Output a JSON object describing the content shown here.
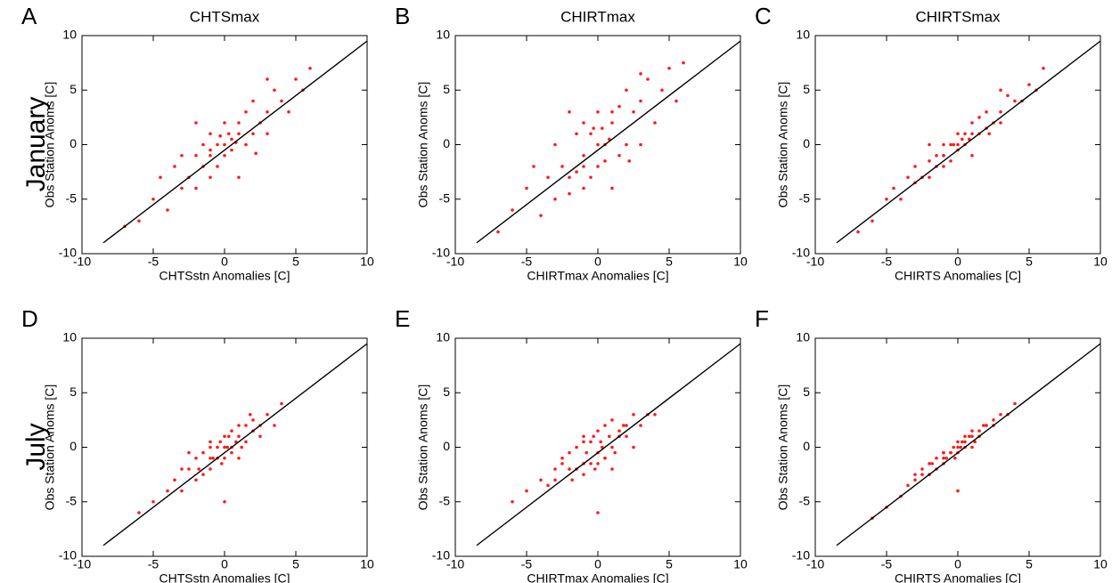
{
  "row_labels": [
    "January",
    "July"
  ],
  "chart_data": [
    {
      "type": "scatter",
      "panel": "A",
      "title": "CHTSmax",
      "xlabel": "CHTSstn Anomalies [C]",
      "ylabel": "Obs Station Anoms [C]",
      "xlim": [
        -10,
        10
      ],
      "ylim": [
        -10,
        10
      ],
      "xticks": [
        -10,
        -5,
        0,
        5,
        10
      ],
      "yticks": [
        -10,
        -5,
        0,
        5,
        10
      ],
      "color": "#ff1a1a",
      "x": [
        -6,
        -5,
        -4.5,
        -4,
        -3.5,
        -3,
        -3,
        -2.5,
        -2,
        -2,
        -1.5,
        -1.5,
        -1,
        -1,
        -1,
        -0.5,
        -0.5,
        0,
        0,
        0,
        0.3,
        0.5,
        0.5,
        1,
        1,
        1.5,
        1.5,
        2,
        2,
        2.5,
        3,
        3,
        3.5,
        4,
        4.5,
        5,
        5.5,
        6,
        -7,
        -2,
        1,
        3,
        -1,
        0.8,
        -0.3,
        2.2
      ],
      "y": [
        -7,
        -5,
        -3,
        -6,
        -2,
        -4,
        -1,
        -3,
        -1,
        -4,
        0,
        -2,
        -1,
        1,
        -3,
        0,
        -2,
        0,
        2,
        -1,
        1,
        0.5,
        -0.5,
        1,
        2,
        0,
        3,
        1,
        4,
        2,
        3,
        1,
        5,
        4,
        3,
        6,
        5,
        7,
        -7.5,
        2,
        -3,
        6,
        -0.5,
        0.2,
        0.8,
        -0.8
      ],
      "fit": {
        "x": [
          -8.5,
          10
        ],
        "y": [
          -9,
          9.5
        ],
        "color": "#000000"
      }
    },
    {
      "type": "scatter",
      "panel": "B",
      "title": "CHIRTmax",
      "xlabel": "CHIRTmax Anomalies [C]",
      "ylabel": "Obs Station Anoms [C]",
      "xlim": [
        -10,
        10
      ],
      "ylim": [
        -10,
        10
      ],
      "xticks": [
        -10,
        -5,
        0,
        5,
        10
      ],
      "yticks": [
        -10,
        -5,
        0,
        5,
        10
      ],
      "color": "#ff1a1a",
      "x": [
        -6,
        -5,
        -4.5,
        -4,
        -3.5,
        -3,
        -3,
        -2.5,
        -2,
        -2,
        -1.5,
        -1.5,
        -1,
        -1,
        -1,
        -0.5,
        -0.5,
        0,
        0,
        0,
        0.3,
        0.5,
        0.5,
        1,
        1,
        1.5,
        1.5,
        2,
        2,
        2.5,
        3,
        3,
        3.5,
        4,
        4.5,
        5,
        5.5,
        6,
        -7,
        -2,
        1,
        3,
        -1,
        0.8,
        -0.3,
        2.2
      ],
      "y": [
        -6,
        -4,
        -2,
        -6.5,
        -3,
        -5,
        0,
        -2,
        -3,
        -4.5,
        1,
        -2.5,
        -2,
        2,
        -4,
        1,
        -3,
        0,
        3,
        -2,
        1.5,
        0,
        -1.5,
        2,
        3,
        -1,
        3.5,
        0,
        5,
        3,
        4,
        0,
        6,
        2,
        5,
        7,
        4,
        7.5,
        -8,
        3,
        -4,
        6.5,
        -1,
        0.5,
        1.5,
        -1.5
      ],
      "fit": {
        "x": [
          -8.5,
          10
        ],
        "y": [
          -9,
          9.5
        ],
        "color": "#000000"
      }
    },
    {
      "type": "scatter",
      "panel": "C",
      "title": "CHIRTSmax",
      "xlabel": "CHIRTS Anomalies [C]",
      "ylabel": "Obs Station Anoms [C]",
      "xlim": [
        -10,
        10
      ],
      "ylim": [
        -10,
        10
      ],
      "xticks": [
        -10,
        -5,
        0,
        5,
        10
      ],
      "yticks": [
        -10,
        -5,
        0,
        5,
        10
      ],
      "color": "#ff1a1a",
      "x": [
        -6,
        -5,
        -4.5,
        -4,
        -3.5,
        -3,
        -3,
        -2.5,
        -2,
        -2,
        -1.5,
        -1.5,
        -1,
        -1,
        -1,
        -0.5,
        -0.5,
        0,
        0,
        0,
        0.3,
        0.5,
        0.5,
        1,
        1,
        1.5,
        1.5,
        2,
        2,
        2.5,
        3,
        3,
        3.5,
        4,
        4.5,
        5,
        5.5,
        6,
        -7,
        -2,
        1,
        3,
        -1,
        0.8,
        -0.3,
        2.2
      ],
      "y": [
        -7,
        -5,
        -4,
        -5,
        -3,
        -3.5,
        -2,
        -3,
        -1.5,
        -3,
        -1,
        -2,
        -1,
        0,
        -2,
        0,
        -1.5,
        0,
        1,
        -0.5,
        0.5,
        1,
        0,
        1,
        2,
        1,
        2.5,
        1.5,
        3,
        2,
        3,
        2,
        4.5,
        4,
        4,
        5.5,
        5,
        7,
        -8,
        0,
        -1,
        5,
        -1,
        0.5,
        0,
        1
      ],
      "fit": {
        "x": [
          -8.5,
          10
        ],
        "y": [
          -9,
          9.5
        ],
        "color": "#000000"
      }
    },
    {
      "type": "scatter",
      "panel": "D",
      "xlabel": "CHTSstn Anomalies [C]",
      "ylabel": "Obs Station Anoms [C]",
      "xlim": [
        -10,
        10
      ],
      "ylim": [
        -10,
        10
      ],
      "xticks": [
        -10,
        -5,
        0,
        5,
        10
      ],
      "yticks": [
        -10,
        -5,
        0,
        5,
        10
      ],
      "color": "#ff1a1a",
      "x": [
        -4,
        -3.5,
        -3,
        -3,
        -2.5,
        -2,
        -2,
        -1.8,
        -1.5,
        -1.5,
        -1,
        -1,
        -1,
        -0.8,
        -0.5,
        -0.5,
        -0.3,
        0,
        0,
        0,
        0.2,
        0.3,
        0.5,
        0.5,
        0.8,
        1,
        1,
        1.2,
        1.5,
        1.5,
        2,
        2,
        2.5,
        3,
        3.5,
        4,
        -5,
        -2.5,
        1,
        2.5,
        -1,
        0.5,
        -0.2,
        1.8,
        -6,
        0
      ],
      "y": [
        -4,
        -3,
        -4,
        -2,
        -2,
        -3,
        -1,
        -2,
        -0.5,
        -2.5,
        -1,
        0,
        -2,
        -1,
        0,
        -1,
        0.5,
        0,
        1,
        -1,
        0,
        1,
        0,
        1.5,
        0.5,
        1,
        2,
        0,
        2,
        0.5,
        1.5,
        2.5,
        2,
        3,
        2,
        4,
        -5,
        -0.5,
        -1,
        1,
        0.5,
        -0.5,
        -1.5,
        3,
        -6,
        -5
      ],
      "fit": {
        "x": [
          -8.5,
          10
        ],
        "y": [
          -9,
          9.5
        ],
        "color": "#000000"
      }
    },
    {
      "type": "scatter",
      "panel": "E",
      "xlabel": "CHIRTmax Anomalies [C]",
      "ylabel": "Obs Station Anoms [C]",
      "xlim": [
        -10,
        10
      ],
      "ylim": [
        -10,
        10
      ],
      "xticks": [
        -10,
        -5,
        0,
        5,
        10
      ],
      "yticks": [
        -10,
        -5,
        0,
        5,
        10
      ],
      "color": "#ff1a1a",
      "x": [
        -4,
        -3.5,
        -3,
        -3,
        -2.5,
        -2,
        -2,
        -1.8,
        -1.5,
        -1.5,
        -1,
        -1,
        -1,
        -0.8,
        -0.5,
        -0.5,
        -0.3,
        0,
        0,
        0,
        0.2,
        0.3,
        0.5,
        0.5,
        0.8,
        1,
        1,
        1.2,
        1.5,
        1.5,
        2,
        2,
        2.5,
        3,
        3.5,
        4,
        -5,
        -2.5,
        1,
        2.5,
        -1,
        0.5,
        -0.2,
        1.8,
        -6,
        0
      ],
      "y": [
        -3,
        -3.5,
        -2,
        -3,
        -1.5,
        -2,
        -0.5,
        -3,
        0,
        -2,
        -1.5,
        0.5,
        -2.5,
        -0.5,
        0.5,
        -1.5,
        1,
        -0.5,
        1.5,
        -1.5,
        0.5,
        0,
        -1,
        2,
        1,
        0,
        2.5,
        -0.5,
        1.5,
        1,
        2,
        1,
        3,
        2,
        3,
        3,
        -4,
        -1,
        -2,
        0,
        1,
        -1,
        -2,
        2,
        -5,
        -6
      ],
      "fit": {
        "x": [
          -8.5,
          10
        ],
        "y": [
          -9,
          9.5
        ],
        "color": "#000000"
      }
    },
    {
      "type": "scatter",
      "panel": "F",
      "xlabel": "CHIRTS Anomalies [C]",
      "ylabel": "Obs Station Anoms [C]",
      "xlim": [
        -10,
        10
      ],
      "ylim": [
        -10,
        10
      ],
      "xticks": [
        -10,
        -5,
        0,
        5,
        10
      ],
      "yticks": [
        -10,
        -5,
        0,
        5,
        10
      ],
      "color": "#ff1a1a",
      "x": [
        -4,
        -3.5,
        -3,
        -3,
        -2.5,
        -2,
        -2,
        -1.8,
        -1.5,
        -1.5,
        -1,
        -1,
        -1,
        -0.8,
        -0.5,
        -0.5,
        -0.3,
        0,
        0,
        0,
        0.2,
        0.3,
        0.5,
        0.5,
        0.8,
        1,
        1,
        1.2,
        1.5,
        1.5,
        2,
        2,
        2.5,
        3,
        3.5,
        4,
        -5,
        -2.5,
        1,
        2.5,
        -1,
        0.5,
        -0.2,
        1.8,
        -6,
        0
      ],
      "y": [
        -4.5,
        -3.5,
        -3,
        -2.5,
        -2.5,
        -2.5,
        -1.5,
        -1.5,
        -1,
        -2,
        -1,
        -0.5,
        -1.5,
        -1,
        -0.5,
        -0.5,
        0,
        0,
        0.5,
        -0.5,
        0,
        0.5,
        0.5,
        1,
        1,
        1,
        1.5,
        0.5,
        1.5,
        1,
        2,
        2,
        2.5,
        3,
        3,
        4,
        -5.5,
        -2,
        0,
        2,
        -0.5,
        0,
        -1,
        2,
        -6.5,
        -4
      ],
      "fit": {
        "x": [
          -8.5,
          10
        ],
        "y": [
          -9,
          9.5
        ],
        "color": "#000000"
      }
    }
  ]
}
